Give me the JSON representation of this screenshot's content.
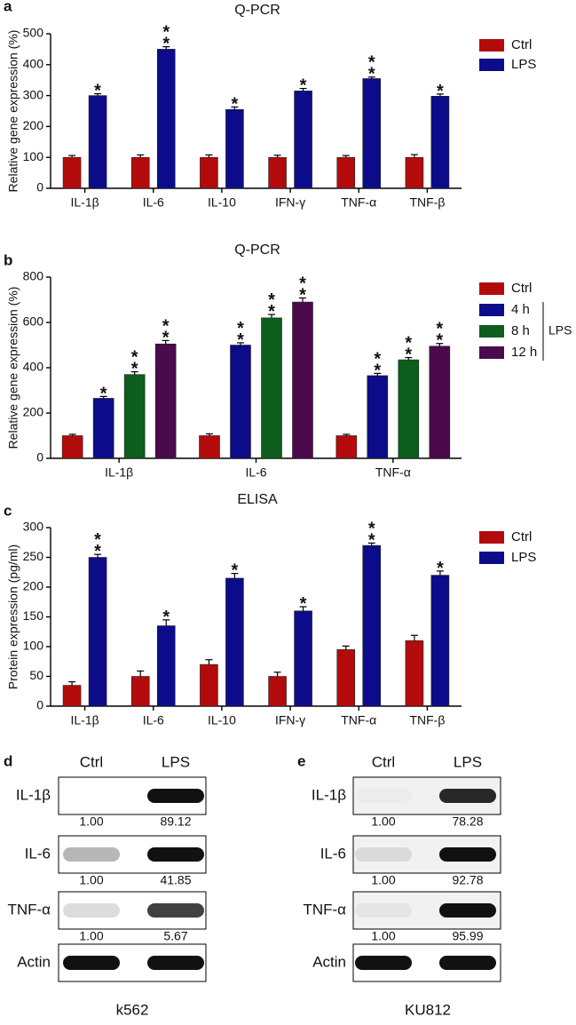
{
  "chart_data": [
    {
      "panel": "a",
      "type": "bar",
      "title": "Q-PCR",
      "y_label": "Relative gene expression (%)",
      "categories": [
        "IL-1β",
        "IL-6",
        "IL-10",
        "IFN-γ",
        "TNF-α",
        "TNF-β"
      ],
      "series": [
        {
          "name": "Ctrl",
          "color": "#b30b0b",
          "values": [
            100,
            100,
            100,
            100,
            100,
            100
          ],
          "errors": [
            6,
            8,
            8,
            7,
            6,
            9
          ]
        },
        {
          "name": "LPS",
          "color": "#0c0c8a",
          "values": [
            300,
            450,
            255,
            315,
            355,
            298
          ],
          "errors": [
            6,
            8,
            8,
            8,
            5,
            7
          ],
          "annotations": [
            "*",
            "**",
            "*",
            "*",
            "**",
            "*"
          ]
        }
      ],
      "ylim": [
        0,
        500
      ],
      "yticks": [
        0,
        100,
        200,
        300,
        400,
        500
      ],
      "legend": "right"
    },
    {
      "panel": "b",
      "type": "bar",
      "title": "Q-PCR",
      "y_label": "Relative gene expression (%)",
      "categories": [
        "IL-1β",
        "IL-6",
        "TNF-α"
      ],
      "series": [
        {
          "name": "Ctrl",
          "color": "#b30b0b",
          "values": [
            100,
            100,
            100
          ],
          "errors": [
            6,
            8,
            6
          ]
        },
        {
          "name": "4 h",
          "color": "#0c0c8a",
          "values": [
            265,
            500,
            365
          ],
          "errors": [
            8,
            10,
            10
          ],
          "annotations": [
            "*",
            "**",
            "**"
          ]
        },
        {
          "name": "8 h",
          "color": "#0b5e1c",
          "values": [
            370,
            620,
            435
          ],
          "errors": [
            12,
            15,
            10
          ],
          "annotations": [
            "**",
            "**",
            "**"
          ]
        },
        {
          "name": "12 h",
          "color": "#4a0a4c",
          "values": [
            505,
            690,
            495
          ],
          "errors": [
            15,
            18,
            12
          ],
          "annotations": [
            "**",
            "**",
            "**"
          ]
        }
      ],
      "legend_group_label": "LPS",
      "ylim": [
        0,
        800
      ],
      "yticks": [
        0,
        200,
        400,
        600,
        800
      ],
      "legend": "right"
    },
    {
      "panel": "c",
      "type": "bar",
      "title": "ELISA",
      "y_label": "Protein expression (pg/ml)",
      "categories": [
        "IL-1β",
        "IL-6",
        "IL-10",
        "IFN-γ",
        "TNF-α",
        "TNF-β"
      ],
      "series": [
        {
          "name": "Ctrl",
          "color": "#b30b0b",
          "values": [
            35,
            50,
            70,
            50,
            95,
            110
          ],
          "errors": [
            6,
            9,
            8,
            7,
            6,
            9
          ]
        },
        {
          "name": "LPS",
          "color": "#0c0c8a",
          "values": [
            250,
            135,
            215,
            160,
            270,
            220
          ],
          "errors": [
            5,
            10,
            8,
            7,
            4,
            7
          ],
          "annotations": [
            "**",
            "*",
            "*",
            "*",
            "**",
            "*"
          ]
        }
      ],
      "ylim": [
        0,
        300
      ],
      "yticks": [
        0,
        50,
        100,
        150,
        200,
        250,
        300
      ],
      "legend": "right"
    }
  ],
  "blots": [
    {
      "panel": "d",
      "cell_line": "k562",
      "columns": [
        "Ctrl",
        "LPS"
      ],
      "rows": [
        {
          "label": "IL-1β",
          "quantification": [
            "1.00",
            "89.12"
          ]
        },
        {
          "label": "IL-6",
          "quantification": [
            "1.00",
            "41.85"
          ]
        },
        {
          "label": "TNF-α",
          "quantification": [
            "1.00",
            "5.67"
          ]
        },
        {
          "label": "Actin"
        }
      ]
    },
    {
      "panel": "e",
      "cell_line": "KU812",
      "columns": [
        "Ctrl",
        "LPS"
      ],
      "rows": [
        {
          "label": "IL-1β",
          "quantification": [
            "1.00",
            "78.28"
          ]
        },
        {
          "label": "IL-6",
          "quantification": [
            "1.00",
            "92.78"
          ]
        },
        {
          "label": "TNF-α",
          "quantification": [
            "1.00",
            "95.99"
          ]
        },
        {
          "label": "Actin"
        }
      ]
    }
  ]
}
